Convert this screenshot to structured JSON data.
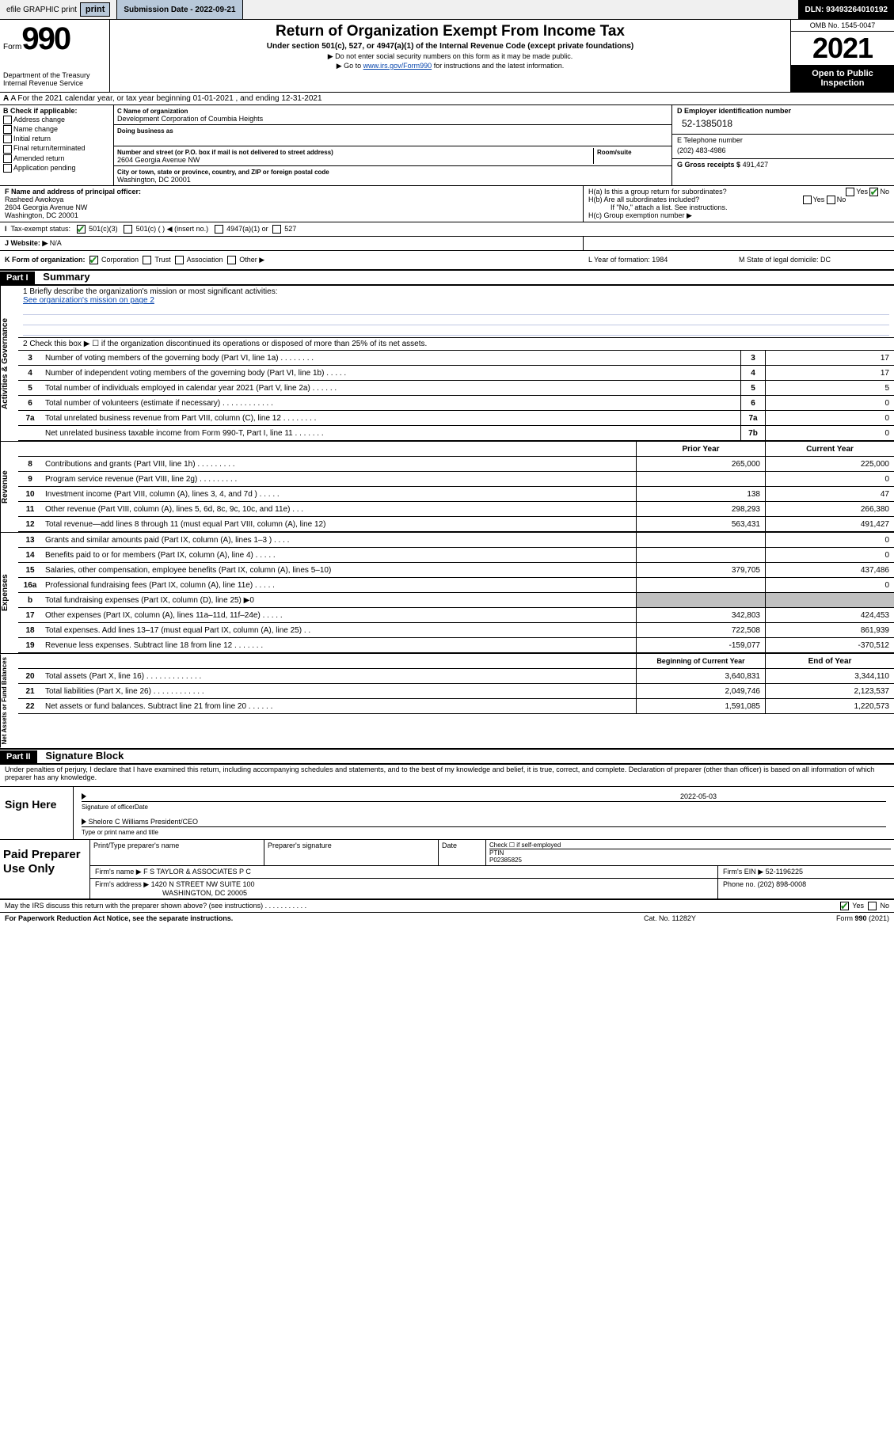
{
  "topbar": {
    "efile": "efile GRAPHIC print",
    "sub_label": "Submission Date - 2022-09-21",
    "dln": "DLN: 93493264010192"
  },
  "header": {
    "form_word": "Form",
    "form_num": "990",
    "title": "Return of Organization Exempt From Income Tax",
    "sub": "Under section 501(c), 527, or 4947(a)(1) of the Internal Revenue Code (except private foundations)",
    "small1": "▶ Do not enter social security numbers on this form as it may be made public.",
    "small2_pre": "▶ Go to ",
    "small2_link": "www.irs.gov/Form990",
    "small2_post": " for instructions and the latest information.",
    "dept": "Department of the Treasury",
    "irs": "Internal Revenue Service",
    "omb": "OMB No. 1545-0047",
    "year": "2021",
    "inspect": "Open to Public Inspection"
  },
  "row_a": "A For the 2021 calendar year, or tax year beginning 01-01-2021   , and ending 12-31-2021",
  "b_checks": {
    "title": "B Check if applicable:",
    "items": [
      "Address change",
      "Name change",
      "Initial return",
      "Final return/terminated",
      "Amended return",
      "Application pending"
    ]
  },
  "c": {
    "label": "C Name of organization",
    "name": "Development Corporation of Coumbia Heights",
    "dba": "Doing business as",
    "addr_label": "Number and street (or P.O. box if mail is not delivered to street address)",
    "room": "Room/suite",
    "addr": "2604 Georgia Avenue NW",
    "city_label": "City or town, state or province, country, and ZIP or foreign postal code",
    "city": "Washington, DC  20001"
  },
  "d": {
    "label": "D Employer identification number",
    "ein": "52-1385018"
  },
  "e": {
    "label": "E Telephone number",
    "phone": "(202) 483-4986"
  },
  "g": {
    "label": "G Gross receipts $",
    "val": "491,427"
  },
  "f": {
    "label": "F Name and address of principal officer:",
    "name": "Rasheed Awokoya",
    "addr1": "2604 Georgia Avenue NW",
    "addr2": "Washington, DC  20001"
  },
  "h": {
    "a": "H(a)  Is this a group return for subordinates?",
    "b": "H(b)  Are all subordinates included?",
    "note": "If \"No,\" attach a list. See instructions.",
    "c": "H(c)  Group exemption number ▶"
  },
  "row_i": {
    "label": "Tax-exempt status:",
    "opts": [
      "501(c)(3)",
      "501(c) (  ) ◀ (insert no.)",
      "4947(a)(1) or",
      "527"
    ]
  },
  "row_j": {
    "label": "J  Website: ▶",
    "val": "N/A"
  },
  "row_k": {
    "label": "K Form of organization:",
    "opts": [
      "Corporation",
      "Trust",
      "Association",
      "Other ▶"
    ],
    "l": "L Year of formation: 1984",
    "m": "M State of legal domicile: DC"
  },
  "parts": {
    "p1": "Part I",
    "p1_title": "Summary",
    "p2": "Part II",
    "p2_title": "Signature Block"
  },
  "mission": {
    "q1": "1  Briefly describe the organization's mission or most significant activities:",
    "link": "See organization's mission on page 2",
    "q2": "2  Check this box ▶ ☐  if the organization discontinued its operations or disposed of more than 25% of its net assets."
  },
  "gov_lines": [
    {
      "n": "3",
      "label": "Number of voting members of the governing body (Part VI, line 1a)   .    .    .    .    .    .    .    .",
      "box": "3",
      "val": "17"
    },
    {
      "n": "4",
      "label": "Number of independent voting members of the governing body (Part VI, line 1b)   .    .    .    .    .",
      "box": "4",
      "val": "17"
    },
    {
      "n": "5",
      "label": "Total number of individuals employed in calendar year 2021 (Part V, line 2a)   .    .    .    .    .    .",
      "box": "5",
      "val": "5"
    },
    {
      "n": "6",
      "label": "Total number of volunteers (estimate if necessary)   .    .    .    .    .    .    .    .    .    .    .    .",
      "box": "6",
      "val": "0"
    },
    {
      "n": "7a",
      "label": "Total unrelated business revenue from Part VIII, column (C), line 12   .    .    .    .    .    .    .    .",
      "box": "7a",
      "val": "0"
    },
    {
      "n": "",
      "label": "Net unrelated business taxable income from Form 990-T, Part I, line 11   .    .    .    .    .    .    .",
      "box": "7b",
      "val": "0"
    }
  ],
  "rev_hdr": {
    "prior": "Prior Year",
    "curr": "Current Year"
  },
  "rev_lines": [
    {
      "n": "8",
      "label": "Contributions and grants (Part VIII, line 1h)   .    .    .    .    .    .    .    .    .",
      "prior": "265,000",
      "curr": "225,000"
    },
    {
      "n": "9",
      "label": "Program service revenue (Part VIII, line 2g)   .    .    .    .    .    .    .    .    .",
      "prior": "",
      "curr": "0"
    },
    {
      "n": "10",
      "label": "Investment income (Part VIII, column (A), lines 3, 4, and 7d )   .    .    .    .    .",
      "prior": "138",
      "curr": "47"
    },
    {
      "n": "11",
      "label": "Other revenue (Part VIII, column (A), lines 5, 6d, 8c, 9c, 10c, and 11e)   .    .    .",
      "prior": "298,293",
      "curr": "266,380"
    },
    {
      "n": "12",
      "label": "Total revenue—add lines 8 through 11 (must equal Part VIII, column (A), line 12)",
      "prior": "563,431",
      "curr": "491,427"
    }
  ],
  "exp_lines": [
    {
      "n": "13",
      "label": "Grants and similar amounts paid (Part IX, column (A), lines 1–3 )   .    .    .    .",
      "prior": "",
      "curr": "0"
    },
    {
      "n": "14",
      "label": "Benefits paid to or for members (Part IX, column (A), line 4)   .    .    .    .    .",
      "prior": "",
      "curr": "0"
    },
    {
      "n": "15",
      "label": "Salaries, other compensation, employee benefits (Part IX, column (A), lines 5–10)",
      "prior": "379,705",
      "curr": "437,486"
    },
    {
      "n": "16a",
      "label": "Professional fundraising fees (Part IX, column (A), line 11e)   .    .    .    .    .",
      "prior": "",
      "curr": "0"
    },
    {
      "n": "b",
      "label": "Total fundraising expenses (Part IX, column (D), line 25) ▶0",
      "gray": true
    },
    {
      "n": "17",
      "label": "Other expenses (Part IX, column (A), lines 11a–11d, 11f–24e)   .    .    .    .    .",
      "prior": "342,803",
      "curr": "424,453"
    },
    {
      "n": "18",
      "label": "Total expenses. Add lines 13–17 (must equal Part IX, column (A), line 25)   .    .",
      "prior": "722,508",
      "curr": "861,939"
    },
    {
      "n": "19",
      "label": "Revenue less expenses. Subtract line 18 from line 12   .    .    .    .    .    .    .",
      "prior": "-159,077",
      "curr": "-370,512"
    }
  ],
  "na_hdr": {
    "prior": "Beginning of Current Year",
    "curr": "End of Year"
  },
  "na_lines": [
    {
      "n": "20",
      "label": "Total assets (Part X, line 16)   .    .    .    .    .    .    .    .    .    .    .    .    .",
      "prior": "3,640,831",
      "curr": "3,344,110"
    },
    {
      "n": "21",
      "label": "Total liabilities (Part X, line 26)   .    .    .    .    .    .    .    .    .    .    .    .",
      "prior": "2,049,746",
      "curr": "2,123,537"
    },
    {
      "n": "22",
      "label": "Net assets or fund balances. Subtract line 21 from line 20   .    .    .    .    .    .",
      "prior": "1,591,085",
      "curr": "1,220,573"
    }
  ],
  "vtabs": {
    "gov": "Activities & Governance",
    "rev": "Revenue",
    "exp": "Expenses",
    "na": "Net Assets or Fund Balances"
  },
  "sig_decl": "Under penalties of perjury, I declare that I have examined this return, including accompanying schedules and statements, and to the best of my knowledge and belief, it is true, correct, and complete. Declaration of preparer (other than officer) is based on all information of which preparer has any knowledge.",
  "sign": {
    "label": "Sign Here",
    "sig_officer": "Signature of officer",
    "date": "2022-05-03",
    "date_label": "Date",
    "officer": "Shelore C Williams  President/CEO",
    "type_label": "Type or print name and title"
  },
  "prep": {
    "label": "Paid Preparer Use Only",
    "col1": "Print/Type preparer's name",
    "col2": "Preparer's signature",
    "col3": "Date",
    "col4a": "Check ☐ if self-employed",
    "col4b": "PTIN",
    "ptin": "P02385825",
    "firm_label": "Firm's name   ▶",
    "firm": "F S TAYLOR & ASSOCIATES P C",
    "ein_label": "Firm's EIN ▶",
    "ein": "52-1196225",
    "addr_label": "Firm's address ▶",
    "addr1": "1420 N STREET NW SUITE 100",
    "addr2": "WASHINGTON, DC  20005",
    "phone_label": "Phone no.",
    "phone": "(202) 898-0008"
  },
  "discuss": "May the IRS discuss this return with the preparer shown above? (see instructions)   .    .    .    .    .    .    .    .    .    .    .",
  "yesno": {
    "yes": "Yes",
    "no": "No"
  },
  "footer": {
    "paperwork": "For Paperwork Reduction Act Notice, see the separate instructions.",
    "cat": "Cat. No. 11282Y",
    "form": "Form 990 (2021)"
  }
}
